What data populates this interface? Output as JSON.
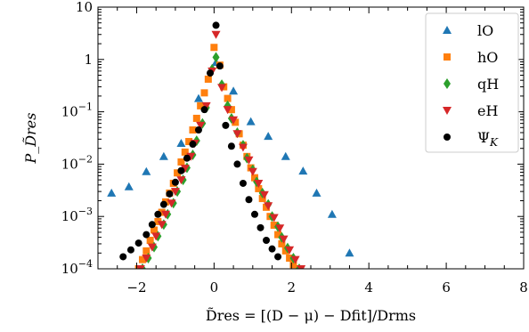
{
  "chart_data": {
    "type": "scatter",
    "xlabel": "D̃res = [(D − μ) − Dfit]/Drms",
    "ylabel": "P_D̃res",
    "xlim": [
      -3.0,
      8.0
    ],
    "ylim": [
      0.0001,
      10
    ],
    "y_scale": "log",
    "x_ticks": [
      -2,
      0,
      2,
      4,
      6,
      8
    ],
    "x_tick_labels": [
      "−2",
      "0",
      "2",
      "4",
      "6",
      "8"
    ],
    "y_ticks": [
      0.0001,
      0.001,
      0.01,
      0.1,
      1,
      10
    ],
    "y_tick_labels": [
      {
        "base": "10",
        "exp": "−4"
      },
      {
        "base": "10",
        "exp": "−3"
      },
      {
        "base": "10",
        "exp": "−2"
      },
      {
        "base": "10",
        "exp": "−1"
      },
      {
        "base": "1",
        "exp": ""
      },
      {
        "base": "10",
        "exp": ""
      }
    ],
    "grid": false,
    "legend": "top-right",
    "series": [
      {
        "name": "lO",
        "marker": "triangle-up",
        "color": "#1f77b4",
        "x": [
          -2.65,
          -2.2,
          -1.75,
          -1.3,
          -0.85,
          -0.4,
          0.05,
          0.5,
          0.95,
          1.4,
          1.85,
          2.3,
          2.65,
          3.05,
          3.5
        ],
        "y": [
          0.0028,
          0.0037,
          0.0072,
          0.014,
          0.025,
          0.18,
          0.88,
          0.25,
          0.065,
          0.034,
          0.014,
          0.0074,
          0.0028,
          0.0011,
          0.0002
        ]
      },
      {
        "name": "hO",
        "marker": "square",
        "color": "#ff7f0e",
        "x": [
          -1.95,
          -1.85,
          -1.75,
          -1.65,
          -1.55,
          -1.45,
          -1.35,
          -1.25,
          -1.15,
          -1.05,
          -0.95,
          -0.85,
          -0.75,
          -0.65,
          -0.55,
          -0.45,
          -0.35,
          -0.25,
          -0.15,
          0.0,
          0.15,
          0.25,
          0.35,
          0.45,
          0.55,
          0.65,
          0.75,
          0.85,
          0.95,
          1.05,
          1.15,
          1.25,
          1.35,
          1.45,
          1.55,
          1.65,
          1.75,
          1.85,
          1.95,
          2.05,
          2.2
        ],
        "y": [
          0.0001,
          0.00015,
          0.00022,
          0.00035,
          0.00055,
          0.0008,
          0.0012,
          0.0019,
          0.0028,
          0.0043,
          0.0068,
          0.011,
          0.017,
          0.027,
          0.045,
          0.075,
          0.13,
          0.23,
          0.42,
          1.7,
          0.78,
          0.3,
          0.18,
          0.11,
          0.063,
          0.038,
          0.023,
          0.014,
          0.0085,
          0.0055,
          0.0034,
          0.0022,
          0.0015,
          0.001,
          0.00068,
          0.00045,
          0.0003,
          0.00022,
          0.00016,
          0.00012,
          0.0001
        ]
      },
      {
        "name": "qH",
        "marker": "diamond",
        "color": "#2ca02c",
        "x": [
          -1.85,
          -1.7,
          -1.55,
          -1.45,
          -1.3,
          -1.2,
          -1.05,
          -0.95,
          -0.8,
          -0.7,
          -0.55,
          -0.45,
          -0.3,
          -0.2,
          -0.05,
          0.05,
          0.2,
          0.35,
          0.45,
          0.6,
          0.75,
          0.85,
          1.0,
          1.1,
          1.25,
          1.4,
          1.5,
          1.65,
          1.75,
          1.9,
          2.05,
          2.2
        ],
        "y": [
          0.0001,
          0.00016,
          0.00026,
          0.00042,
          0.0007,
          0.0011,
          0.0018,
          0.003,
          0.005,
          0.0085,
          0.015,
          0.028,
          0.06,
          0.12,
          0.65,
          1.1,
          0.33,
          0.13,
          0.075,
          0.04,
          0.023,
          0.013,
          0.0078,
          0.0046,
          0.0028,
          0.0017,
          0.001,
          0.00064,
          0.0004,
          0.00025,
          0.00016,
          0.0001
        ]
      },
      {
        "name": "eH",
        "marker": "triangle-down",
        "color": "#d62728",
        "x": [
          -1.9,
          -1.75,
          -1.6,
          -1.5,
          -1.35,
          -1.25,
          -1.1,
          -1.0,
          -0.85,
          -0.75,
          -0.6,
          -0.5,
          -0.35,
          -0.2,
          -0.05,
          0.05,
          0.2,
          0.35,
          0.5,
          0.6,
          0.75,
          0.9,
          1.0,
          1.15,
          1.3,
          1.4,
          1.55,
          1.7,
          1.8,
          1.95,
          2.1,
          2.25
        ],
        "y": [
          0.0001,
          0.00016,
          0.00026,
          0.00042,
          0.0007,
          0.0011,
          0.0018,
          0.003,
          0.005,
          0.0083,
          0.014,
          0.025,
          0.055,
          0.13,
          0.6,
          3.0,
          0.29,
          0.11,
          0.07,
          0.038,
          0.021,
          0.012,
          0.0072,
          0.0043,
          0.0026,
          0.0016,
          0.00095,
          0.0006,
          0.00037,
          0.00023,
          0.00015,
          0.0001
        ]
      },
      {
        "name": "ΨK",
        "marker": "circle",
        "color": "#000000",
        "x": [
          -2.35,
          -2.15,
          -1.95,
          -1.75,
          -1.6,
          -1.45,
          -1.3,
          -1.15,
          -1.0,
          -0.85,
          -0.7,
          -0.55,
          -0.4,
          -0.25,
          -0.1,
          0.05,
          0.15,
          0.3,
          0.45,
          0.6,
          0.75,
          0.9,
          1.05,
          1.2,
          1.35,
          1.5,
          1.65
        ],
        "y": [
          0.00017,
          0.00023,
          0.00031,
          0.00045,
          0.0007,
          0.0011,
          0.0017,
          0.0027,
          0.0045,
          0.0075,
          0.013,
          0.024,
          0.045,
          0.11,
          0.55,
          4.5,
          0.75,
          0.055,
          0.022,
          0.01,
          0.0043,
          0.0021,
          0.0011,
          0.00061,
          0.00035,
          0.00024,
          0.00017
        ]
      }
    ]
  }
}
